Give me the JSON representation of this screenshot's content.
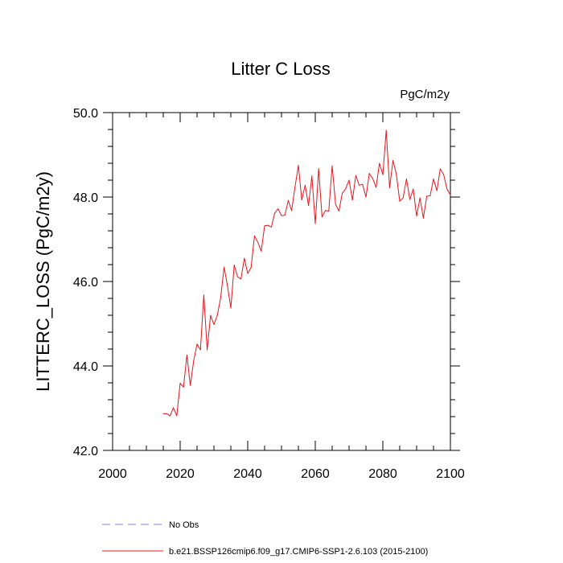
{
  "chart_data": {
    "type": "line",
    "title": "Litter C Loss",
    "units": "PgC/m2y",
    "xlabel": "",
    "ylabel": "LITTERC_LOSS  (PgC/m2y)",
    "xlim": [
      2000,
      2100
    ],
    "ylim": [
      42.0,
      50.0
    ],
    "x_ticks": [
      "2000",
      "2020",
      "2040",
      "2060",
      "2080",
      "2100"
    ],
    "y_ticks": [
      "42.0",
      "44.0",
      "46.0",
      "48.0",
      "50.0"
    ],
    "grid": false,
    "legend_placement": "bottom",
    "x": [
      2015,
      2016,
      2017,
      2018,
      2019,
      2020,
      2021,
      2022,
      2023,
      2024,
      2025,
      2026,
      2027,
      2028,
      2029,
      2030,
      2031,
      2032,
      2033,
      2034,
      2035,
      2036,
      2037,
      2038,
      2039,
      2040,
      2041,
      2042,
      2043,
      2044,
      2045,
      2046,
      2047,
      2048,
      2049,
      2050,
      2051,
      2052,
      2053,
      2054,
      2055,
      2056,
      2057,
      2058,
      2059,
      2060,
      2061,
      2062,
      2063,
      2064,
      2065,
      2066,
      2067,
      2068,
      2069,
      2070,
      2071,
      2072,
      2073,
      2074,
      2075,
      2076,
      2077,
      2078,
      2079,
      2080,
      2081,
      2082,
      2083,
      2084,
      2085,
      2086,
      2087,
      2088,
      2089,
      2090,
      2091,
      2092,
      2093,
      2094,
      2095,
      2096,
      2097,
      2098,
      2099,
      2100
    ],
    "series": [
      {
        "name": "b.e21.BSSP126cmip6.f09_g17.CMIP6-SSP1-2.6.103 (2015-2100)",
        "color": "#e8141e",
        "dash": "solid",
        "values": [
          42.87,
          42.87,
          42.82,
          43.01,
          42.82,
          43.59,
          43.5,
          44.26,
          43.54,
          44.12,
          44.52,
          44.38,
          45.68,
          44.38,
          45.2,
          44.98,
          45.2,
          45.62,
          46.34,
          45.9,
          45.37,
          46.39,
          46.11,
          46.06,
          46.55,
          46.19,
          46.33,
          47.08,
          46.93,
          46.72,
          47.32,
          47.33,
          47.29,
          47.62,
          47.72,
          47.56,
          47.57,
          47.92,
          47.68,
          48.24,
          48.75,
          47.93,
          48.28,
          47.8,
          48.5,
          47.37,
          48.67,
          47.53,
          47.68,
          47.67,
          48.74,
          47.83,
          47.67,
          48.09,
          48.2,
          48.4,
          47.93,
          48.51,
          48.28,
          48.3,
          48.0,
          48.56,
          48.44,
          48.23,
          48.8,
          48.53,
          49.58,
          48.22,
          48.87,
          48.54,
          47.9,
          47.98,
          48.43,
          47.94,
          48.19,
          47.55,
          47.98,
          47.5,
          48.02,
          48.03,
          48.43,
          48.15,
          48.67,
          48.53,
          48.19,
          48.05
        ]
      }
    ],
    "obs_series": {
      "name": "No Obs",
      "color": "#8080ff",
      "dash": "dashed"
    }
  }
}
